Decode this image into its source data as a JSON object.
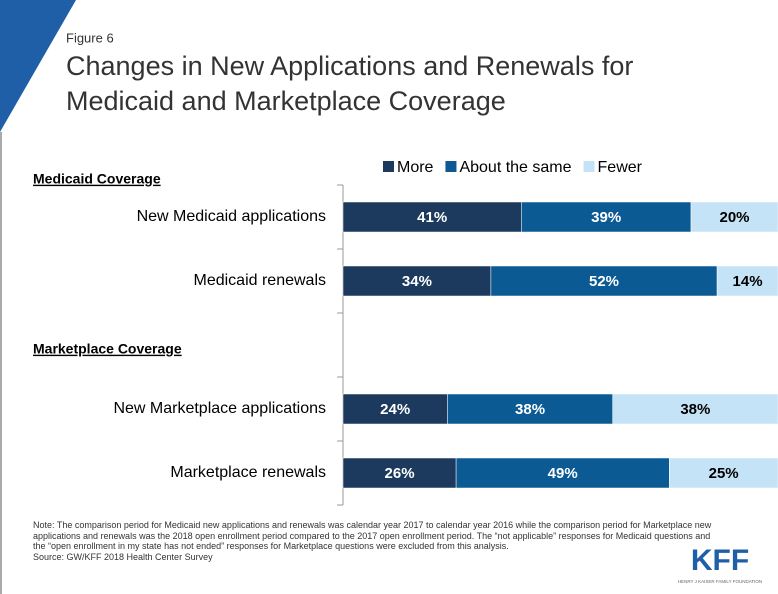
{
  "chart_data": {
    "type": "stacked_barh",
    "figure_label": "Figure 6",
    "title_lines": [
      "Changes in New Applications and Renewals for",
      "Medicaid and Marketplace Coverage"
    ],
    "categories": [
      "New Medicaid applications",
      "Medicaid renewals",
      null,
      "New Marketplace applications",
      "Marketplace renewals"
    ],
    "annotations": [
      "Medicaid Coverage",
      "Marketplace Coverage"
    ],
    "series": [
      {
        "name": "More",
        "color": "#1b3a5e",
        "values": [
          41,
          34,
          null,
          24,
          26
        ],
        "value_labels": [
          "41%",
          "34%",
          null,
          "24%",
          "26%"
        ]
      },
      {
        "name": "About the same",
        "color": "#0b5a94",
        "values": [
          39,
          52,
          null,
          38,
          49
        ],
        "value_labels": [
          "39%",
          "52%",
          null,
          "38%",
          "49%"
        ]
      },
      {
        "name": "Fewer",
        "color": "#c5e3f6",
        "values": [
          20,
          14,
          null,
          38,
          25
        ],
        "value_labels": [
          "20%",
          "14%",
          null,
          "38%",
          "25%"
        ]
      }
    ],
    "xlim": [
      0,
      100
    ],
    "legend": "top",
    "note": "Note: The comparison period for Medicaid new applications and renewals was calendar year 2017 to calendar year 2016 while the comparison period for Marketplace new applications and renewals was the 2018 open enrollment period compared to the 2017 open enrollment period. The “not applicable” responses for Medicaid questions and the “open enrollment in my state has not ended” responses for Marketplace questions were excluded from this analysis.",
    "source": "Source: GW/KFF 2018 Health Center Survey",
    "logo": "KFF",
    "logo_subtext": "HENRY J KAISER FAMILY FOUNDATION"
  }
}
